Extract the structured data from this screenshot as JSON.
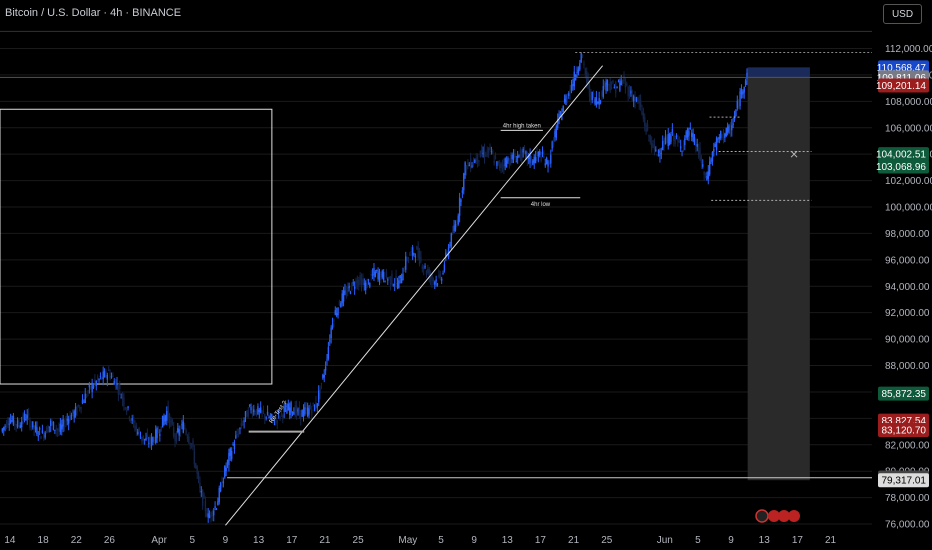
{
  "header": {
    "title": "Bitcoin / U.S. Dollar · 4h · BINANCE",
    "currency_button": "USD"
  },
  "chart_data": {
    "type": "candlestick",
    "symbol": "Bitcoin / U.S. Dollar",
    "interval": "4h",
    "exchange": "BINANCE",
    "y_ticks": [
      "112,000.00",
      "110,000.00",
      "108,000.00",
      "106,000.00",
      "104,000.00",
      "102,000.00",
      "100,000.00",
      "98,000.00",
      "96,000.00",
      "94,000.00",
      "92,000.00",
      "90,000.00",
      "88,000.00",
      "86,000.00",
      "84,000.00",
      "82,000.00",
      "80,000.00",
      "78,000.00",
      "76,000.00"
    ],
    "ylim": [
      75700,
      113400
    ],
    "x_ticks": [
      "14",
      "18",
      "22",
      "26",
      "Apr",
      "5",
      "9",
      "13",
      "17",
      "21",
      "25",
      "May",
      "5",
      "9",
      "13",
      "17",
      "21",
      "25",
      "Jun",
      "5",
      "9",
      "13",
      "17",
      "21"
    ],
    "x_tick_days": [
      -17,
      -13,
      -9,
      -5,
      1,
      5,
      9,
      13,
      17,
      21,
      25,
      31,
      35,
      39,
      43,
      47,
      51,
      55,
      62,
      66,
      70,
      74,
      78,
      82
    ],
    "xlim": [
      -18.2,
      87.0
    ],
    "price_series_daily": [
      {
        "d": -18,
        "v": 83000
      },
      {
        "d": -17,
        "v": 84000
      },
      {
        "d": -16,
        "v": 83500
      },
      {
        "d": -15,
        "v": 84200
      },
      {
        "d": -14,
        "v": 83200
      },
      {
        "d": -13,
        "v": 82800
      },
      {
        "d": -12,
        "v": 83600
      },
      {
        "d": -11,
        "v": 83000
      },
      {
        "d": -10,
        "v": 84000
      },
      {
        "d": -9,
        "v": 84500
      },
      {
        "d": -8,
        "v": 85500
      },
      {
        "d": -7,
        "v": 86500
      },
      {
        "d": -6,
        "v": 87000
      },
      {
        "d": -5,
        "v": 87500
      },
      {
        "d": -4,
        "v": 86500
      },
      {
        "d": -3,
        "v": 85000
      },
      {
        "d": -2,
        "v": 83500
      },
      {
        "d": -1,
        "v": 82500
      },
      {
        "d": 0,
        "v": 82200
      },
      {
        "d": 1,
        "v": 83000
      },
      {
        "d": 2,
        "v": 84500
      },
      {
        "d": 3,
        "v": 82500
      },
      {
        "d": 4,
        "v": 83500
      },
      {
        "d": 5,
        "v": 82000
      },
      {
        "d": 6,
        "v": 78500
      },
      {
        "d": 7,
        "v": 76500
      },
      {
        "d": 8,
        "v": 77500
      },
      {
        "d": 9,
        "v": 80000
      },
      {
        "d": 10,
        "v": 82000
      },
      {
        "d": 11,
        "v": 83500
      },
      {
        "d": 12,
        "v": 84800
      },
      {
        "d": 13,
        "v": 84500
      },
      {
        "d": 14,
        "v": 84200
      },
      {
        "d": 15,
        "v": 83800
      },
      {
        "d": 16,
        "v": 84500
      },
      {
        "d": 17,
        "v": 84800
      },
      {
        "d": 18,
        "v": 84300
      },
      {
        "d": 19,
        "v": 84600
      },
      {
        "d": 20,
        "v": 85000
      },
      {
        "d": 21,
        "v": 87500
      },
      {
        "d": 22,
        "v": 91500
      },
      {
        "d": 23,
        "v": 93000
      },
      {
        "d": 24,
        "v": 93800
      },
      {
        "d": 25,
        "v": 94500
      },
      {
        "d": 26,
        "v": 94000
      },
      {
        "d": 27,
        "v": 95000
      },
      {
        "d": 28,
        "v": 94800
      },
      {
        "d": 29,
        "v": 94500
      },
      {
        "d": 30,
        "v": 94200
      },
      {
        "d": 31,
        "v": 96200
      },
      {
        "d": 32,
        "v": 96700
      },
      {
        "d": 33,
        "v": 95500
      },
      {
        "d": 34,
        "v": 94500
      },
      {
        "d": 35,
        "v": 94500
      },
      {
        "d": 36,
        "v": 97000
      },
      {
        "d": 37,
        "v": 99000
      },
      {
        "d": 38,
        "v": 103000
      },
      {
        "d": 39,
        "v": 103500
      },
      {
        "d": 40,
        "v": 104000
      },
      {
        "d": 41,
        "v": 104200
      },
      {
        "d": 42,
        "v": 103000
      },
      {
        "d": 43,
        "v": 103500
      },
      {
        "d": 44,
        "v": 103800
      },
      {
        "d": 45,
        "v": 104000
      },
      {
        "d": 46,
        "v": 103500
      },
      {
        "d": 47,
        "v": 104000
      },
      {
        "d": 48,
        "v": 103200
      },
      {
        "d": 49,
        "v": 106000
      },
      {
        "d": 50,
        "v": 108000
      },
      {
        "d": 51,
        "v": 109500
      },
      {
        "d": 52,
        "v": 111500
      },
      {
        "d": 53,
        "v": 108500
      },
      {
        "d": 54,
        "v": 108000
      },
      {
        "d": 55,
        "v": 109500
      },
      {
        "d": 56,
        "v": 109000
      },
      {
        "d": 57,
        "v": 109500
      },
      {
        "d": 58,
        "v": 108500
      },
      {
        "d": 59,
        "v": 107800
      },
      {
        "d": 60,
        "v": 105500
      },
      {
        "d": 61,
        "v": 104000
      },
      {
        "d": 62,
        "v": 104800
      },
      {
        "d": 63,
        "v": 105500
      },
      {
        "d": 64,
        "v": 104500
      },
      {
        "d": 65,
        "v": 105800
      },
      {
        "d": 66,
        "v": 104500
      },
      {
        "d": 67,
        "v": 102000
      },
      {
        "d": 68,
        "v": 104500
      },
      {
        "d": 69,
        "v": 105500
      },
      {
        "d": 70,
        "v": 105800
      },
      {
        "d": 71,
        "v": 108000
      },
      {
        "d": 72,
        "v": 110200
      }
    ],
    "price_tags": [
      {
        "text": "110,568.47",
        "value": 110568.47,
        "color": "#1848cc"
      },
      {
        "text": "109,811.06",
        "value": 109811.06,
        "color": "#787b86"
      },
      {
        "text": "109,201.14",
        "value": 109201.14,
        "color": "#9c1d1d"
      },
      {
        "text": "104,002.51",
        "value": 104002.51,
        "color": "#0e5a3a"
      },
      {
        "text": "103,068.96",
        "value": 103068.96,
        "color": "#0e5a3a"
      },
      {
        "text": "85,872.35",
        "value": 85872.35,
        "color": "#0e5a3a"
      },
      {
        "text": "83,827.54",
        "value": 83827.54,
        "color": "#9c1d1d"
      },
      {
        "text": "83,120.70",
        "value": 83120.7,
        "color": "#9c1d1d"
      },
      {
        "text": "79,519.57",
        "value": 79519.57,
        "color": "#444444"
      },
      {
        "text": "79,317.01",
        "value": 79317.01,
        "color": "#dddddd"
      }
    ],
    "annotations": {
      "high_taken_label": "4hr high taken",
      "low_label": "4hr low",
      "retest_label": "Re-Test ?"
    },
    "levels": {
      "ath_dotted": 111700,
      "current_price_line": 109811.06,
      "horizontal_support": 79500,
      "high_taken_line": 105800,
      "low_line": 100700,
      "retest_line": 83000,
      "dash_upper": 106800,
      "dash_mid": 104200,
      "dash_lower": 100500
    },
    "trendline": {
      "from": {
        "d": 9.0,
        "v": 75900
      },
      "to": {
        "d": 54.5,
        "v": 110700
      }
    },
    "rectangle": {
      "from": {
        "d": -18.2,
        "v": 107400
      },
      "to": {
        "d": 14.6,
        "v": 86600
      }
    },
    "position_box": {
      "from": {
        "d": 72,
        "v": 110568.47
      },
      "to": {
        "d": 79.5,
        "v": 79317.01
      }
    },
    "colors": {
      "bull": "#2962ff",
      "bear": "#14244a",
      "background": "#000000",
      "grid": "#1a1a1a"
    }
  }
}
